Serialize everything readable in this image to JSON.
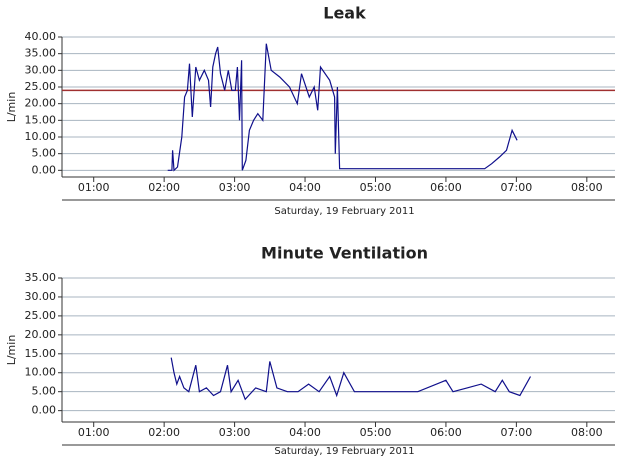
{
  "chart_data": [
    {
      "type": "line",
      "title": "Leak",
      "y_label": "L/min",
      "x_label": "Saturday, 19 February 2011",
      "xlim": [
        0.55,
        8.4
      ],
      "ylim": [
        -2,
        40
      ],
      "grid": true,
      "xticks": [
        {
          "value": 1,
          "label": "01:00"
        },
        {
          "value": 2,
          "label": "02:00"
        },
        {
          "value": 3,
          "label": "03:00"
        },
        {
          "value": 4,
          "label": "04:00"
        },
        {
          "value": 5,
          "label": "05:00"
        },
        {
          "value": 6,
          "label": "06:00"
        },
        {
          "value": 7,
          "label": "07:00"
        },
        {
          "value": 8,
          "label": "08:00"
        }
      ],
      "yticks": [
        {
          "value": 0,
          "label": "0.00"
        },
        {
          "value": 5,
          "label": "5.00"
        },
        {
          "value": 10,
          "label": "10.00"
        },
        {
          "value": 15,
          "label": "15.00"
        },
        {
          "value": 20,
          "label": "20.00"
        },
        {
          "value": 25,
          "label": "25.00"
        },
        {
          "value": 30,
          "label": "30.00"
        },
        {
          "value": 35,
          "label": "35.00"
        },
        {
          "value": 40,
          "label": "40.00"
        }
      ],
      "threshold": 24,
      "threshold_color": "#a03030",
      "color": "#10108c",
      "x": [
        2.05,
        2.11,
        2.12,
        2.14,
        2.19,
        2.25,
        2.29,
        2.33,
        2.36,
        2.4,
        2.45,
        2.5,
        2.57,
        2.63,
        2.66,
        2.69,
        2.73,
        2.76,
        2.8,
        2.86,
        2.91,
        2.96,
        3.01,
        3.04,
        3.07,
        3.1,
        3.11,
        3.16,
        3.21,
        3.27,
        3.33,
        3.4,
        3.45,
        3.52,
        3.64,
        3.78,
        3.89,
        3.95,
        4.06,
        4.13,
        4.18,
        4.22,
        4.35,
        4.42,
        4.43,
        4.46,
        4.49,
        5.34,
        5.55,
        6.19,
        6.55,
        6.65,
        6.76,
        6.86,
        6.94,
        7.01
      ],
      "values": [
        0,
        0,
        6,
        0,
        1,
        10,
        22,
        24,
        32,
        16,
        31,
        27,
        30,
        27,
        19,
        31,
        35,
        37,
        29,
        24,
        30,
        24,
        24,
        31,
        15,
        33,
        0,
        3,
        12,
        15,
        17,
        15,
        38,
        30,
        28,
        25,
        20,
        29,
        22,
        25,
        18,
        31,
        27,
        22,
        5,
        25,
        0.5,
        0.5,
        0.5,
        0.5,
        0.5,
        2,
        4,
        6,
        12,
        9
      ]
    },
    {
      "type": "line",
      "title": "Minute Ventilation",
      "y_label": "L/min",
      "x_label": "Saturday, 19 February 2011",
      "xlim": [
        0.55,
        8.4
      ],
      "ylim": [
        -3,
        35
      ],
      "grid": true,
      "xticks": [
        {
          "value": 1,
          "label": "01:00"
        },
        {
          "value": 2,
          "label": "02:00"
        },
        {
          "value": 3,
          "label": "03:00"
        },
        {
          "value": 4,
          "label": "04:00"
        },
        {
          "value": 5,
          "label": "05:00"
        },
        {
          "value": 6,
          "label": "06:00"
        },
        {
          "value": 7,
          "label": "07:00"
        },
        {
          "value": 8,
          "label": "08:00"
        }
      ],
      "yticks": [
        {
          "value": 0,
          "label": "0.00"
        },
        {
          "value": 5,
          "label": "5.00"
        },
        {
          "value": 10,
          "label": "10.00"
        },
        {
          "value": 15,
          "label": "15.00"
        },
        {
          "value": 20,
          "label": "20.00"
        },
        {
          "value": 25,
          "label": "25.00"
        },
        {
          "value": 30,
          "label": "30.00"
        },
        {
          "value": 35,
          "label": "35.00"
        }
      ],
      "color": "#10108c",
      "x": [
        2.1,
        2.14,
        2.18,
        2.22,
        2.28,
        2.35,
        2.45,
        2.5,
        2.6,
        2.7,
        2.8,
        2.9,
        2.95,
        3.05,
        3.15,
        3.3,
        3.45,
        3.5,
        3.6,
        3.75,
        3.9,
        4.05,
        4.2,
        4.35,
        4.45,
        4.55,
        4.7,
        5.0,
        5.3,
        5.6,
        6.0,
        6.1,
        6.3,
        6.5,
        6.7,
        6.8,
        6.9,
        7.05,
        7.2
      ],
      "values": [
        14,
        10,
        7,
        9,
        6,
        5,
        12,
        5,
        6,
        4,
        5,
        12,
        5,
        8,
        3,
        6,
        5,
        13,
        6,
        5,
        5,
        7,
        5,
        9,
        4,
        10,
        5,
        5,
        5,
        5,
        8,
        5,
        6,
        7,
        5,
        8,
        5,
        4,
        9
      ]
    }
  ]
}
